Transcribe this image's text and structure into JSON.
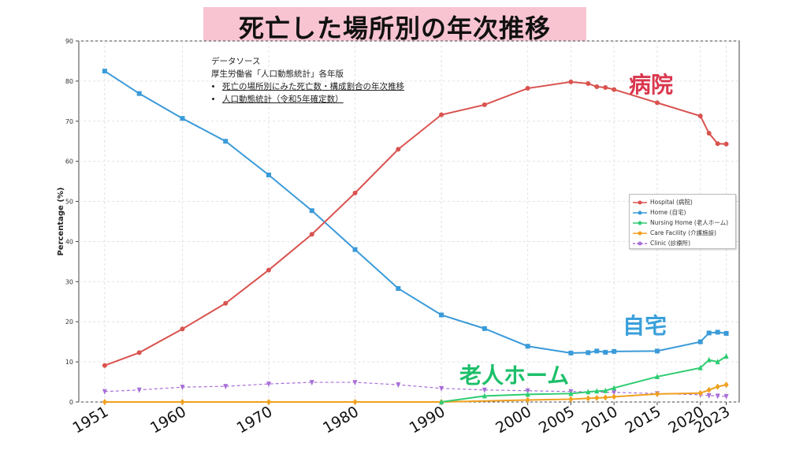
{
  "title": "死亡した場所別の年次推移",
  "source": {
    "heading": "データソース",
    "publisher": "厚生労働省「人口動態統計」各年版",
    "links": [
      "死亡の場所別にみた死亡数・構成割合の年次推移",
      "人口動態統計（令和5年確定数）"
    ]
  },
  "annotations": {
    "hospital": "病院",
    "home": "自宅",
    "nursing": "老人ホーム"
  },
  "chart_data": {
    "type": "line",
    "ylabel": "Percentage (%)",
    "xlabel": "",
    "ylim": [
      0,
      90
    ],
    "yticks": [
      0,
      10,
      20,
      30,
      40,
      50,
      60,
      70,
      80,
      90
    ],
    "xlim": [
      1948,
      2024.5
    ],
    "xticks": [
      1951,
      1960,
      1970,
      1980,
      1990,
      2000,
      2005,
      2010,
      2015,
      2020,
      2023
    ],
    "grid": true,
    "legend_position": "right",
    "series": [
      {
        "name": "Hospital (病院)",
        "color": "#d9534f",
        "marker": "circle",
        "dashed": false,
        "x": [
          1951,
          1955,
          1960,
          1965,
          1970,
          1975,
          1980,
          1985,
          1990,
          1995,
          2000,
          2005,
          2007,
          2008,
          2009,
          2010,
          2015,
          2020,
          2021,
          2022,
          2023
        ],
        "y": [
          9.1,
          12.3,
          18.2,
          24.6,
          32.9,
          41.8,
          52.1,
          63.0,
          71.6,
          74.1,
          78.2,
          79.8,
          79.4,
          78.6,
          78.4,
          77.9,
          74.6,
          71.3,
          67.0,
          64.4,
          64.3
        ]
      },
      {
        "name": "Home (自宅)",
        "color": "#3a9ad9",
        "marker": "square",
        "dashed": false,
        "x": [
          1951,
          1955,
          1960,
          1965,
          1970,
          1975,
          1980,
          1985,
          1990,
          1995,
          2000,
          2005,
          2007,
          2008,
          2009,
          2010,
          2015,
          2020,
          2021,
          2022,
          2023
        ],
        "y": [
          82.5,
          76.9,
          70.7,
          65.0,
          56.6,
          47.7,
          38.0,
          28.3,
          21.7,
          18.3,
          13.9,
          12.2,
          12.3,
          12.7,
          12.4,
          12.6,
          12.7,
          15.0,
          17.2,
          17.4,
          17.1
        ]
      },
      {
        "name": "Nursing Home (老人ホーム)",
        "color": "#2ecc71",
        "marker": "triangle",
        "dashed": false,
        "x": [
          1990,
          1995,
          2000,
          2005,
          2007,
          2008,
          2009,
          2010,
          2015,
          2020,
          2021,
          2022,
          2023
        ],
        "y": [
          0.0,
          1.5,
          1.9,
          2.1,
          2.5,
          2.7,
          2.8,
          3.5,
          6.3,
          8.5,
          10.5,
          10.0,
          11.4
        ]
      },
      {
        "name": "Care Facility (介護施設)",
        "color": "#f0a020",
        "marker": "diamond",
        "dashed": false,
        "x": [
          1951,
          1960,
          1970,
          1980,
          1990,
          2000,
          2005,
          2007,
          2008,
          2009,
          2010,
          2015,
          2020,
          2021,
          2022,
          2023
        ],
        "y": [
          0.0,
          0.0,
          0.0,
          0.0,
          0.0,
          0.5,
          0.7,
          0.9,
          1.0,
          1.1,
          1.3,
          2.0,
          2.2,
          3.0,
          3.8,
          4.3
        ]
      },
      {
        "name": "Clinic (診療所)",
        "color": "#a86fd8",
        "marker": "triangle-down",
        "dashed": true,
        "x": [
          1951,
          1955,
          1960,
          1965,
          1970,
          1975,
          1980,
          1985,
          1990,
          1995,
          2000,
          2005,
          2010,
          2015,
          2020,
          2021,
          2022,
          2023
        ],
        "y": [
          2.6,
          3.0,
          3.7,
          3.9,
          4.5,
          4.9,
          4.9,
          4.3,
          3.4,
          3.0,
          2.8,
          2.6,
          2.4,
          2.1,
          1.8,
          1.6,
          1.5,
          1.4
        ]
      }
    ]
  }
}
